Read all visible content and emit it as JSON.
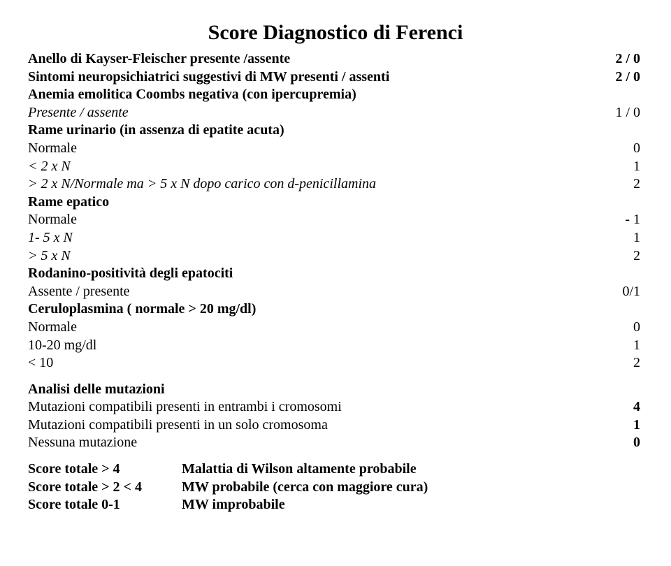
{
  "title": "Score Diagnostico di Ferenci",
  "rows": [
    {
      "label": "Anello di Kayser-Fleischer   presente /assente",
      "val": "2 / 0",
      "bold": true
    },
    {
      "label": "Sintomi neuropsichiatrici suggestivi di MW presenti / assenti",
      "val": "2 / 0",
      "bold": true
    },
    {
      "label": "Anemia emolitica Coombs negativa (con ipercupremia)",
      "val": "",
      "bold": true
    },
    {
      "label": "Presente / assente",
      "val": "1 / 0",
      "italic": true
    },
    {
      "label": "Rame urinario (in assenza di epatite acuta)",
      "val": "",
      "bold": true
    },
    {
      "label": "Normale",
      "val": "0"
    },
    {
      "label": "< 2 x N",
      "val": "1",
      "italic": true
    },
    {
      "label": "> 2 x N/Normale ma > 5 x N dopo carico con d-penicillamina",
      "val": "2",
      "italic": true
    },
    {
      "label": "Rame epatico",
      "val": "",
      "bold": true
    },
    {
      "label": "Normale",
      "val": "- 1"
    },
    {
      "label": "1- 5 x N",
      "val": "1",
      "italic": true
    },
    {
      "label": "> 5 x N",
      "val": "2",
      "italic": true
    },
    {
      "label": "Rodanino-positività degli epatociti",
      "val": "",
      "bold": true
    },
    {
      "label": "Assente / presente",
      "val": "0/1"
    },
    {
      "label": "Ceruloplasmina  ( normale > 20 mg/dl)",
      "val": "",
      "bold": true
    },
    {
      "label": "Normale",
      "val": "0"
    },
    {
      "label": "10-20 mg/dl",
      "val": "1"
    },
    {
      "label": "< 10",
      "val": "2"
    }
  ],
  "mut_header": "Analisi delle mutazioni",
  "mut_rows": [
    {
      "label": "Mutazioni compatibili presenti in entrambi i cromosomi",
      "val": "4"
    },
    {
      "label": "Mutazioni compatibili presenti in un solo cromosoma",
      "val": "1"
    },
    {
      "label": "Nessuna mutazione",
      "val": "0"
    }
  ],
  "scores": [
    {
      "left": "Score totale > 4",
      "right": "Malattia di Wilson altamente probabile"
    },
    {
      "left": "Score  totale > 2 < 4",
      "right": "MW probabile (cerca con maggiore cura)"
    },
    {
      "left": "Score totale  0-1",
      "right": "MW improbabile"
    }
  ]
}
